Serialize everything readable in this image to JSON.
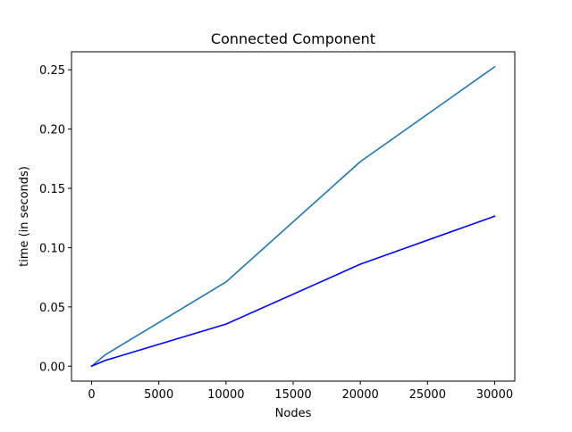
{
  "chart_data": {
    "type": "line",
    "title": "Connected Component",
    "xlabel": "Nodes",
    "ylabel": "time (in seconds)",
    "xlim": [
      -1500,
      31500
    ],
    "ylim": [
      -0.0126,
      0.2652
    ],
    "xticks": [
      0,
      5000,
      10000,
      15000,
      20000,
      25000,
      30000
    ],
    "xtick_labels": [
      "0",
      "5000",
      "10000",
      "15000",
      "20000",
      "25000",
      "30000"
    ],
    "yticks": [
      0.0,
      0.05,
      0.1,
      0.15,
      0.2,
      0.25
    ],
    "ytick_labels": [
      "0.00",
      "0.05",
      "0.10",
      "0.15",
      "0.20",
      "0.25"
    ],
    "grid": false,
    "x": [
      0,
      1000,
      10000,
      20000,
      30000
    ],
    "series": [
      {
        "values": [
          0.0,
          0.0095,
          0.071,
          0.1725,
          0.2525
        ],
        "color": "#1f77b4"
      },
      {
        "values": [
          0.0,
          0.0048,
          0.0355,
          0.086,
          0.1265
        ],
        "color": "#0000ff"
      }
    ]
  }
}
